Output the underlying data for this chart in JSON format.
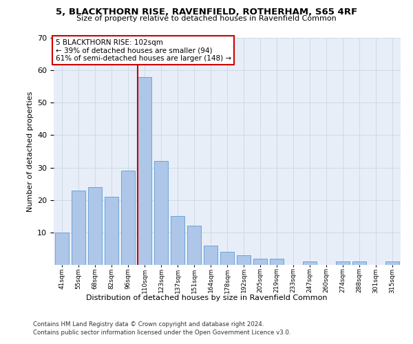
{
  "title": "5, BLACKTHORN RISE, RAVENFIELD, ROTHERHAM, S65 4RF",
  "subtitle": "Size of property relative to detached houses in Ravenfield Common",
  "xlabel": "Distribution of detached houses by size in Ravenfield Common",
  "ylabel": "Number of detached properties",
  "bar_labels": [
    "41sqm",
    "55sqm",
    "68sqm",
    "82sqm",
    "96sqm",
    "110sqm",
    "123sqm",
    "137sqm",
    "151sqm",
    "164sqm",
    "178sqm",
    "192sqm",
    "205sqm",
    "219sqm",
    "233sqm",
    "247sqm",
    "260sqm",
    "274sqm",
    "288sqm",
    "301sqm",
    "315sqm"
  ],
  "bar_heights": [
    10,
    23,
    24,
    21,
    29,
    58,
    32,
    15,
    12,
    6,
    4,
    3,
    2,
    2,
    0,
    1,
    0,
    1,
    1,
    0,
    1
  ],
  "bar_color": "#aec6e8",
  "bar_edge_color": "#5b9bd5",
  "property_line_x": 5,
  "property_value": 102,
  "annotation_title": "5 BLACKTHORN RISE: 102sqm",
  "annotation_line1": "← 39% of detached houses are smaller (94)",
  "annotation_line2": "61% of semi-detached houses are larger (148) →",
  "annotation_box_color": "#ffffff",
  "annotation_box_edge": "#cc0000",
  "vline_color": "#cc0000",
  "ylim": [
    0,
    70
  ],
  "yticks": [
    0,
    10,
    20,
    30,
    40,
    50,
    60,
    70
  ],
  "grid_color": "#d0d8e8",
  "bg_color": "#e8eef8",
  "footer1": "Contains HM Land Registry data © Crown copyright and database right 2024.",
  "footer2": "Contains public sector information licensed under the Open Government Licence v3.0."
}
